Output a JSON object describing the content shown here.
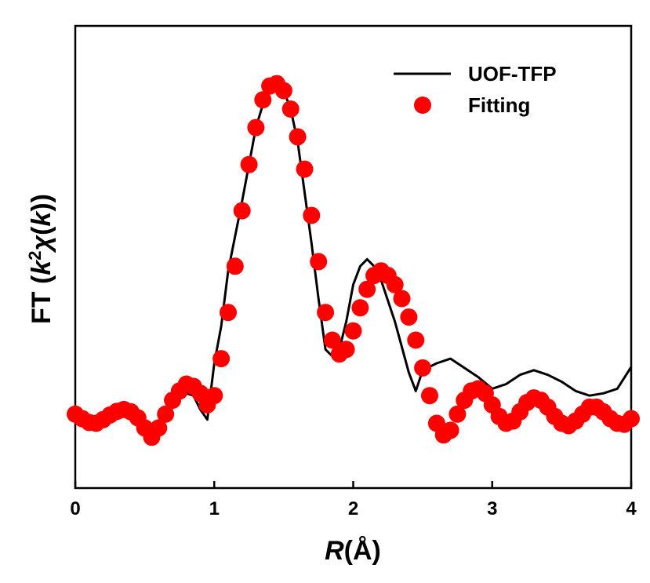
{
  "chart_data": {
    "type": "line",
    "title": "",
    "xlabel": "R(Å)",
    "xlabel_parts": {
      "var": "R",
      "unit": "(Å)"
    },
    "ylabel": "FT (k²χ(k))",
    "ylabel_parts": {
      "prefix": "FT (",
      "k1": "k",
      "sup": "2",
      "chi": "χ",
      "open": "(",
      "k2": "k",
      "close": "))"
    },
    "xlim": [
      0,
      4
    ],
    "ylim": [
      0,
      1
    ],
    "x_ticks": [
      {
        "value": 0,
        "label": "0"
      },
      {
        "value": 1,
        "label": "1"
      },
      {
        "value": 2,
        "label": "2"
      },
      {
        "value": 3,
        "label": "3"
      },
      {
        "value": 4,
        "label": "4"
      }
    ],
    "y_ticks": [],
    "grid": false,
    "legend_position": "top-right",
    "series": [
      {
        "name": "UOF-TFP",
        "style": "line",
        "color": "#000000",
        "x": [
          0,
          0.1,
          0.2,
          0.3,
          0.4,
          0.5,
          0.55,
          0.6,
          0.7,
          0.8,
          0.85,
          0.9,
          0.95,
          1.0,
          1.05,
          1.1,
          1.2,
          1.3,
          1.35,
          1.4,
          1.45,
          1.5,
          1.55,
          1.6,
          1.7,
          1.75,
          1.8,
          1.85,
          1.9,
          1.95,
          2.0,
          2.05,
          2.1,
          2.15,
          2.2,
          2.3,
          2.4,
          2.45,
          2.5,
          2.6,
          2.7,
          2.8,
          2.9,
          3.0,
          3.1,
          3.2,
          3.3,
          3.4,
          3.5,
          3.6,
          3.7,
          3.8,
          3.9,
          4.0
        ],
        "y": [
          0.158,
          0.15,
          0.145,
          0.156,
          0.163,
          0.14,
          0.13,
          0.145,
          0.185,
          0.205,
          0.2,
          0.17,
          0.148,
          0.27,
          0.35,
          0.47,
          0.62,
          0.78,
          0.83,
          0.87,
          0.875,
          0.86,
          0.82,
          0.75,
          0.53,
          0.41,
          0.3,
          0.285,
          0.3,
          0.36,
          0.44,
          0.48,
          0.495,
          0.48,
          0.45,
          0.36,
          0.25,
          0.21,
          0.255,
          0.27,
          0.28,
          0.26,
          0.24,
          0.215,
          0.225,
          0.245,
          0.255,
          0.245,
          0.23,
          0.21,
          0.2,
          0.205,
          0.215,
          0.262
        ]
      },
      {
        "name": "Fitting",
        "style": "scatter",
        "color": "#ff0000",
        "x": [
          0.0,
          0.05,
          0.1,
          0.15,
          0.2,
          0.25,
          0.3,
          0.35,
          0.4,
          0.45,
          0.5,
          0.55,
          0.6,
          0.65,
          0.7,
          0.75,
          0.8,
          0.85,
          0.9,
          0.95,
          1.0,
          1.05,
          1.1,
          1.15,
          1.2,
          1.25,
          1.3,
          1.35,
          1.4,
          1.45,
          1.5,
          1.55,
          1.6,
          1.65,
          1.7,
          1.75,
          1.8,
          1.85,
          1.9,
          1.95,
          2.0,
          2.05,
          2.1,
          2.15,
          2.2,
          2.25,
          2.3,
          2.35,
          2.4,
          2.45,
          2.5,
          2.55,
          2.6,
          2.65,
          2.7,
          2.75,
          2.8,
          2.85,
          2.9,
          2.95,
          3.0,
          3.05,
          3.1,
          3.15,
          3.2,
          3.25,
          3.3,
          3.35,
          3.4,
          3.45,
          3.5,
          3.55,
          3.6,
          3.65,
          3.7,
          3.75,
          3.8,
          3.85,
          3.9,
          3.95,
          4.0
        ],
        "y": [
          0.16,
          0.15,
          0.142,
          0.14,
          0.148,
          0.158,
          0.166,
          0.17,
          0.165,
          0.152,
          0.13,
          0.11,
          0.13,
          0.16,
          0.19,
          0.21,
          0.225,
          0.22,
          0.205,
          0.18,
          0.2,
          0.28,
          0.38,
          0.48,
          0.6,
          0.7,
          0.78,
          0.84,
          0.87,
          0.875,
          0.86,
          0.82,
          0.76,
          0.69,
          0.59,
          0.49,
          0.38,
          0.32,
          0.29,
          0.3,
          0.34,
          0.39,
          0.43,
          0.46,
          0.47,
          0.46,
          0.44,
          0.41,
          0.37,
          0.32,
          0.26,
          0.2,
          0.14,
          0.115,
          0.125,
          0.16,
          0.19,
          0.21,
          0.215,
          0.205,
          0.18,
          0.155,
          0.14,
          0.145,
          0.165,
          0.185,
          0.195,
          0.19,
          0.175,
          0.155,
          0.14,
          0.135,
          0.145,
          0.16,
          0.175,
          0.175,
          0.165,
          0.15,
          0.14,
          0.138,
          0.15
        ]
      }
    ]
  }
}
